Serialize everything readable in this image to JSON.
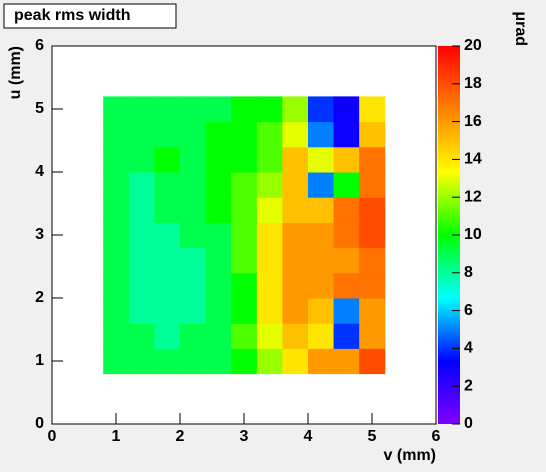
{
  "chart_data": {
    "type": "heatmap",
    "title": "peak rms width",
    "x_label": "v (mm)",
    "y_label": "u (mm)",
    "z_label": "μrad",
    "x_bins": [
      0,
      0.4,
      0.8,
      1.2,
      1.6,
      2,
      2.4,
      2.8,
      3.2,
      3.6,
      4,
      4.4,
      4.8,
      5.2,
      5.6,
      6
    ],
    "y_bins": [
      0,
      0.4,
      0.8,
      1.2,
      1.6,
      2,
      2.4,
      2.8,
      3.2,
      3.6,
      4,
      4.4,
      4.8,
      5.2,
      5.6,
      6
    ],
    "z": [
      [
        null,
        null,
        null,
        null,
        null,
        null,
        null,
        null,
        null,
        null,
        null,
        null,
        null,
        null,
        null
      ],
      [
        null,
        null,
        null,
        null,
        null,
        null,
        null,
        null,
        null,
        null,
        null,
        null,
        null,
        null,
        null
      ],
      [
        null,
        null,
        9,
        9,
        9,
        9,
        9,
        10,
        12,
        14,
        16,
        16,
        18,
        null,
        null
      ],
      [
        null,
        null,
        9,
        9,
        8,
        9,
        9,
        11,
        13,
        15,
        14,
        4,
        16,
        null,
        null
      ],
      [
        null,
        null,
        9,
        8,
        8,
        8,
        9,
        10,
        14,
        16,
        15,
        5,
        16,
        null,
        null
      ],
      [
        null,
        null,
        9,
        8,
        8,
        8,
        9,
        10,
        14,
        16,
        16,
        17,
        17,
        null,
        null
      ],
      [
        null,
        null,
        9,
        8,
        8,
        8,
        9,
        11,
        14,
        16,
        16,
        16,
        17,
        null,
        null
      ],
      [
        null,
        null,
        9,
        8,
        8,
        9,
        9,
        11,
        14,
        16,
        16,
        17,
        18,
        null,
        null
      ],
      [
        null,
        null,
        9,
        8,
        9,
        9,
        10,
        11,
        13,
        15,
        15,
        17,
        18,
        null,
        null
      ],
      [
        null,
        null,
        9,
        8,
        9,
        9,
        10,
        11,
        12,
        15,
        5,
        10,
        17,
        null,
        null
      ],
      [
        null,
        null,
        9,
        9,
        10,
        9,
        10,
        10,
        11,
        15,
        13,
        15,
        17,
        null,
        null
      ],
      [
        null,
        null,
        9,
        9,
        9,
        9,
        10,
        10,
        11,
        13,
        5,
        3,
        15,
        null,
        null
      ],
      [
        null,
        null,
        9,
        9,
        9,
        9,
        9,
        10,
        10,
        12,
        4,
        3,
        14,
        null,
        null
      ],
      [
        null,
        null,
        null,
        null,
        null,
        null,
        null,
        null,
        null,
        null,
        null,
        null,
        null,
        null,
        null
      ],
      [
        null,
        null,
        null,
        null,
        null,
        null,
        null,
        null,
        null,
        null,
        null,
        null,
        null,
        null,
        null
      ]
    ],
    "xlim": [
      0,
      6
    ],
    "xticks": [
      0,
      1,
      2,
      3,
      4,
      5,
      6
    ],
    "ylim": [
      0,
      6
    ],
    "yticks": [
      0,
      1,
      2,
      3,
      4,
      5,
      6
    ],
    "zlim": [
      0,
      20
    ],
    "zticks": [
      0,
      2,
      4,
      6,
      8,
      10,
      12,
      14,
      16,
      18,
      20
    ],
    "palette": [
      "#8000ff",
      "#0000ff",
      "#00ffff",
      "#00ff00",
      "#ffff00",
      "#ff8000",
      "#ff0000"
    ]
  }
}
